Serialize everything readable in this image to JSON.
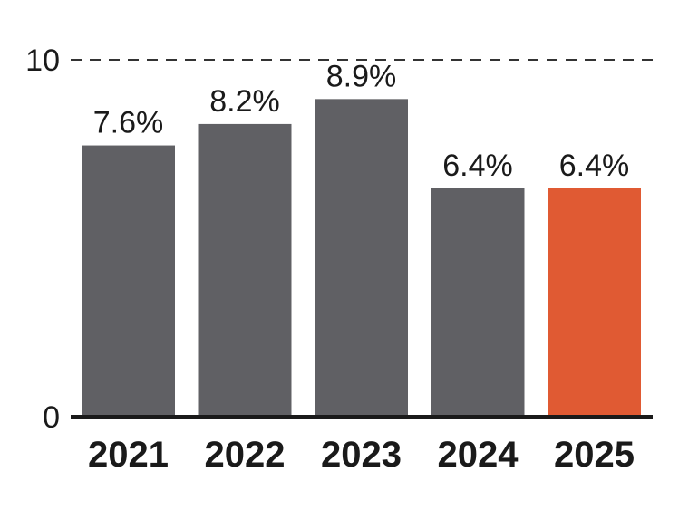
{
  "chart_data": {
    "type": "bar",
    "categories": [
      "2021",
      "2022",
      "2023",
      "2024",
      "2025"
    ],
    "values": [
      7.6,
      8.2,
      8.9,
      6.4,
      6.4
    ],
    "value_labels": [
      "7.6%",
      "8.2%",
      "8.9%",
      "6.4%",
      "6.4%"
    ],
    "ylim": [
      0,
      10
    ],
    "yticks": [
      0,
      10
    ],
    "ytick_labels": [
      "0",
      "10"
    ],
    "gridline": {
      "value": 10,
      "style": "dashed"
    },
    "colors": {
      "default_bar": "#606064",
      "highlight_bar": "#E05A33",
      "axis": "#1a1a1a",
      "grid": "#333333"
    },
    "highlight_index": 4
  }
}
